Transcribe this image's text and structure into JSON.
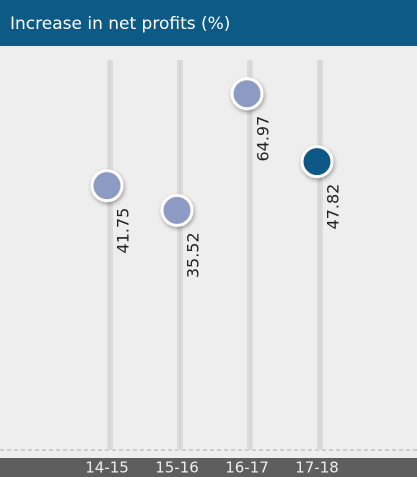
{
  "chart_data": {
    "type": "dot",
    "title": "Increase in net profits (%)",
    "categories": [
      "14-15",
      "15-16",
      "16-17",
      "17-18"
    ],
    "values": [
      41.75,
      35.52,
      64.97,
      47.82
    ],
    "colors": [
      "#8d9bc4",
      "#8d9bc4",
      "#8d9bc4",
      "#0b5885"
    ],
    "ylim": [
      -25,
      75
    ]
  }
}
